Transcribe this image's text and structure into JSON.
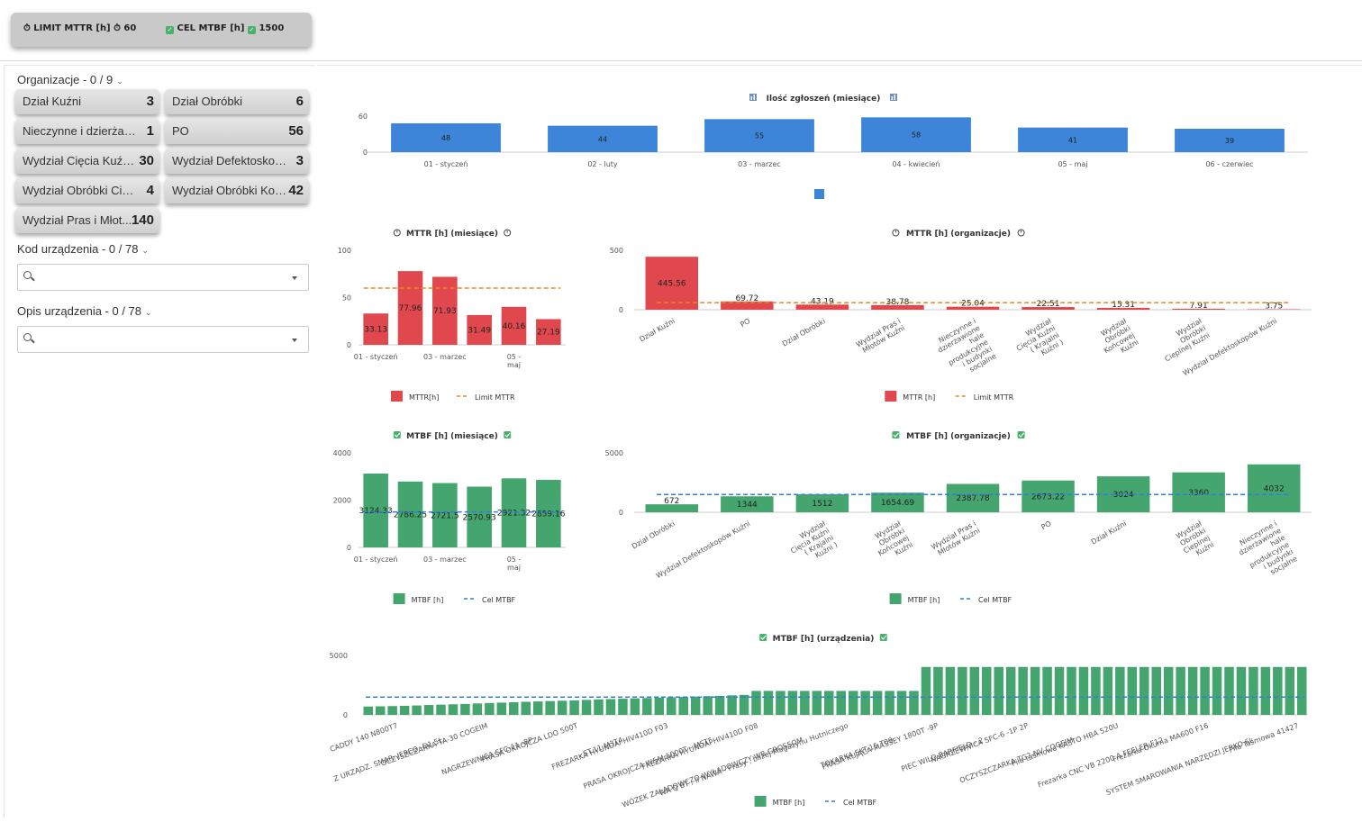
{
  "kpis": {
    "limit_mttr_label": "LIMIT MTTR [h]",
    "limit_mttr_value": "60",
    "cel_mtbf_label": "CEL MTBF [h]",
    "cel_mtbf_value": "1500"
  },
  "filters": {
    "organizations": {
      "title": "Organizacje - 0 / 9",
      "items": [
        {
          "name": "Dział Kuźni",
          "count": "3"
        },
        {
          "name": "Dział Obróbki",
          "count": "6"
        },
        {
          "name": "Nieczynne i dzierżawio...",
          "count": "1"
        },
        {
          "name": "PO",
          "count": "56"
        },
        {
          "name": "Wydział Cięcia Kuźni (...",
          "count": "30"
        },
        {
          "name": "Wydział Defektoskopó...",
          "count": "3"
        },
        {
          "name": "Wydział Obróbki Ciepln...",
          "count": "4"
        },
        {
          "name": "Wydział Obróbki Koń...",
          "count": "42"
        },
        {
          "name": "Wydział Pras i Młot...",
          "count": "140"
        }
      ]
    },
    "device_code": {
      "title": "Kod urządzenia - 0 / 78",
      "value": ""
    },
    "device_desc": {
      "title": "Opis urządzenia - 0 / 78",
      "value": ""
    }
  },
  "colors": {
    "blue": "#3d85d8",
    "red": "#e0484e",
    "green": "#45a56f",
    "orange": "#e8871e",
    "limit_blue": "#2f7fd6"
  },
  "chart_data": [
    {
      "id": "reports",
      "type": "bar",
      "title": "Ilość zgłoszeń (miesiące)",
      "categories": [
        "01 - styczeń",
        "02 - luty",
        "03 - marzec",
        "04 - kwiecień",
        "05 - maj",
        "06 - czerwiec"
      ],
      "values": [
        48,
        44,
        55,
        58,
        41,
        39
      ],
      "ylim": [
        0,
        60
      ],
      "yticks": [
        0,
        60
      ]
    },
    {
      "id": "mttr_months",
      "type": "bar",
      "title": "MTTR [h] (miesiące)",
      "categories": [
        "01 - styczeń",
        "02 - luty",
        "03 - marzec",
        "04 - kwiecień",
        "05 - maj",
        "06 - czerwiec"
      ],
      "visible_tick_labels": [
        "01 - styczeń",
        "",
        "03 - marzec",
        "",
        "05 - maj",
        ""
      ],
      "series": [
        {
          "name": "MTTR[h]",
          "values": [
            33.13,
            77.96,
            71.93,
            31.49,
            40.16,
            27.19
          ]
        },
        {
          "name": "Limit MTTR",
          "values": [
            60,
            60,
            60,
            60,
            60,
            60
          ]
        }
      ],
      "ylim": [
        0,
        100
      ],
      "yticks": [
        0,
        50,
        100
      ]
    },
    {
      "id": "mttr_orgs",
      "type": "bar",
      "title": "MTTR [h] (organizacje)",
      "categories": [
        "Dział Kuźni",
        "PO",
        "Dział Obróbki",
        "Wydział Pras i Młotów Kuźni",
        "Nieczynne i dzierżawione hale produkcyjne i budynki socjalne",
        "Wydział Cięcia Kuźni ( Krajalni Kuźni )",
        "Wydział Obróbki Końcowej Kuźni",
        "Wydział Obróbki Cieplnej Kuźni",
        "Wydział Defektoskopów Kuźni"
      ],
      "series": [
        {
          "name": "MTTR [h]",
          "values": [
            445.56,
            69.72,
            43.19,
            38.78,
            25.04,
            22.51,
            15.31,
            7.91,
            3.75
          ]
        },
        {
          "name": "Limit MTTR",
          "values": [
            60,
            60,
            60,
            60,
            60,
            60,
            60,
            60,
            60
          ]
        }
      ],
      "ylim": [
        0,
        500
      ],
      "yticks": [
        0,
        500
      ]
    },
    {
      "id": "mtbf_months",
      "type": "bar",
      "title": "MTBF [h] (miesiące)",
      "categories": [
        "01 - styczeń",
        "02 - luty",
        "03 - marzec",
        "04 - kwiecień",
        "05 - maj",
        "06 - czerwiec"
      ],
      "visible_tick_labels": [
        "01 - styczeń",
        "",
        "03 - marzec",
        "",
        "05 - maj",
        ""
      ],
      "series": [
        {
          "name": "MTBF [h]",
          "values": [
            3124.33,
            2786.25,
            2721.5,
            2570.93,
            2921.32,
            2859.16
          ]
        },
        {
          "name": "Cel MTBF",
          "values": [
            1500,
            1500,
            1500,
            1500,
            1500,
            1500
          ]
        }
      ],
      "ylim": [
        0,
        4000
      ],
      "yticks": [
        0,
        2000,
        4000
      ]
    },
    {
      "id": "mtbf_orgs",
      "type": "bar",
      "title": "MTBF [h] (organizacje)",
      "categories": [
        "Dział Obróbki",
        "Wydział Defektoskopów Kuźni",
        "Wydział Cięcia Kuźni ( Krajalni Kuźni )",
        "Wydział Obróbki Końcowej Kuźni",
        "Wydział Pras i Młotów Kuźni",
        "PO",
        "Dział Kuźni",
        "Wydział Obróbki Cieplnej Kuźni",
        "Nieczynne i dzierżawione hale produkcyjne i budynki socjalne"
      ],
      "series": [
        {
          "name": "MTBF [h]",
          "values": [
            672,
            1344,
            1512,
            1654.69,
            2387.78,
            2673.22,
            3024,
            3360,
            4032
          ]
        },
        {
          "name": "Cel MTBF",
          "values": [
            1500,
            1500,
            1500,
            1500,
            1500,
            1500,
            1500,
            1500,
            1500
          ]
        }
      ],
      "ylim": [
        0,
        5000
      ],
      "yticks": [
        0,
        5000
      ]
    },
    {
      "id": "mtbf_devices",
      "type": "bar",
      "title": "MTBF [h] (urządzenia)",
      "tick_labels": [
        "CADDY 140 N800T7",
        "Z URZĄDZ. SMAR. JERCO -D1 5L",
        "OCZYSZCZARKA TA-30 COGEIM",
        "NAGRZEWNICA SFC-11 -8P",
        "PRASA OKROJCZA LDO 500T",
        "- ST.11 M3T4",
        "FREZARKA HYUNDAI HIV410D F03",
        "PRASA OKROJCZA W&M 1000T - MST5",
        "FREZARKA HYUNDAI HIV410D F08",
        "WÓZEK ZAŁADOWCZO-WYŁADOWCZY WB GROSSOM",
        "WA Q 8T , II NAWA - Prasy , bliżej Magazynu Hutniczego",
        "TOKARKA SKT-15 T09",
        "PRASA KUJĄCA MASSEY 1800T -9P",
        "PIEC WILD BARFIELD - 2",
        "NAGRZEWNICA SFC-6 -1P 2P",
        "OCZYSZCZARKA TG2-NV COGEIM",
        "Piła taśmowa KASTO HBA 520U",
        "Frezarka CNC VB 2200 A FEELER F12",
        "Frezarka Okuma MA600 F16",
        "SYSTEM SMAROWANIA NARZĘDZI JERKO 6L",
        "Piła Taśmowa 41427"
      ],
      "values": [
        700,
        720,
        740,
        760,
        790,
        830,
        860,
        890,
        920,
        960,
        1000,
        1030,
        1060,
        1100,
        1130,
        1160,
        1190,
        1220,
        1260,
        1300,
        1330,
        1360,
        1390,
        1420,
        1450,
        1480,
        1510,
        1540,
        1570,
        1600,
        1640,
        1680,
        2016,
        2016,
        2016,
        2016,
        2016,
        2016,
        2016,
        2016,
        2016,
        2016,
        2016,
        2016,
        2016,
        2016,
        4032,
        4032,
        4032,
        4032,
        4032,
        4032,
        4032,
        4032,
        4032,
        4032,
        4032,
        4032,
        4032,
        4032,
        4032,
        4032,
        4032,
        4032,
        4032,
        4032,
        4032,
        4032,
        4032,
        4032,
        4032,
        4032,
        4032,
        4032,
        4032,
        4032,
        4032,
        4032
      ],
      "series_names": [
        "MTBF [h]",
        "Cel MTBF"
      ],
      "target": 1500,
      "ylim": [
        0,
        5000
      ],
      "yticks": [
        0,
        5000
      ]
    }
  ]
}
